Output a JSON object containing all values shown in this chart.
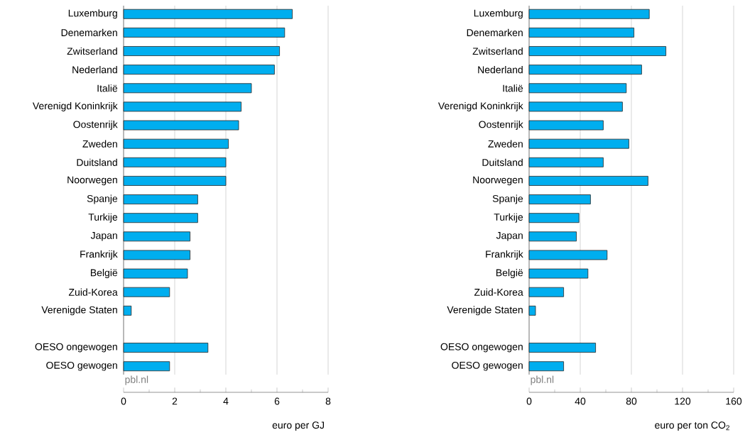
{
  "chart_data": [
    {
      "type": "bar",
      "orientation": "horizontal",
      "categories": [
        "Luxemburg",
        "Denemarken",
        "Zwitserland",
        "Nederland",
        "Italië",
        "Verenigd Koninkrijk",
        "Oostenrijk",
        "Zweden",
        "Duitsland",
        "Noorwegen",
        "Spanje",
        "Turkije",
        "Japan",
        "Frankrijk",
        "België",
        "Zuid-Korea",
        "Verenigde Staten",
        null,
        "OESO ongewogen",
        "OESO gewogen"
      ],
      "values": [
        6.6,
        6.3,
        6.1,
        5.9,
        5.0,
        4.6,
        4.5,
        4.1,
        4.0,
        4.0,
        2.9,
        2.9,
        2.6,
        2.6,
        2.5,
        1.8,
        0.3,
        null,
        3.3,
        1.8
      ],
      "color": "#00aeef",
      "xlim": [
        0,
        8
      ],
      "xticks": [
        0,
        2,
        4,
        6,
        8
      ],
      "xlabel": "euro per GJ",
      "grid": "x",
      "annotations": [
        "pbl.nl"
      ]
    },
    {
      "type": "bar",
      "orientation": "horizontal",
      "categories": [
        "Luxemburg",
        "Denemarken",
        "Zwitserland",
        "Nederland",
        "Italië",
        "Verenigd Koninkrijk",
        "Oostenrijk",
        "Zweden",
        "Duitsland",
        "Noorwegen",
        "Spanje",
        "Turkije",
        "Japan",
        "Frankrijk",
        "België",
        "Zuid-Korea",
        "Verenigde Staten",
        null,
        "OESO ongewogen",
        "OESO gewogen"
      ],
      "values": [
        94,
        82,
        107,
        88,
        76,
        73,
        58,
        78,
        58,
        93,
        48,
        39,
        37,
        61,
        46,
        27,
        5,
        null,
        52,
        27
      ],
      "color": "#00aeef",
      "xlim": [
        0,
        160
      ],
      "xticks": [
        0,
        40,
        80,
        120,
        160
      ],
      "xlabel": "euro per ton CO$_{2}$",
      "grid": "x",
      "annotations": [
        "pbl.nl"
      ]
    }
  ]
}
